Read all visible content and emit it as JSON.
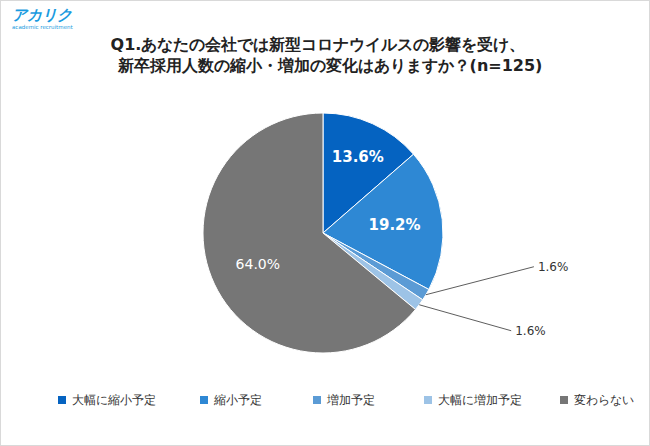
{
  "chart_data": {
    "type": "pie",
    "title": "Q1.あなたの会社では新型コロナウイルスの影響を受け、\n新卒採用人数の縮小・増加の変化はありますか？(n=125)",
    "annotations": [
      "アカリク",
      "academic recruitment"
    ],
    "categories": [
      "大幅に縮小予定",
      "縮小予定",
      "増加予定",
      "大幅に増加予定",
      "変わらない"
    ],
    "values": [
      13.6,
      19.2,
      1.6,
      1.6,
      64.0
    ],
    "value_labels": [
      "13.6%",
      "19.2%",
      "1.6%",
      "1.6%",
      "64.0%"
    ],
    "colors": [
      "#0563c1",
      "#2e88d4",
      "#5b9bd5",
      "#9dc3e6",
      "#767676"
    ],
    "data_labels": true,
    "legend": "bottom"
  }
}
